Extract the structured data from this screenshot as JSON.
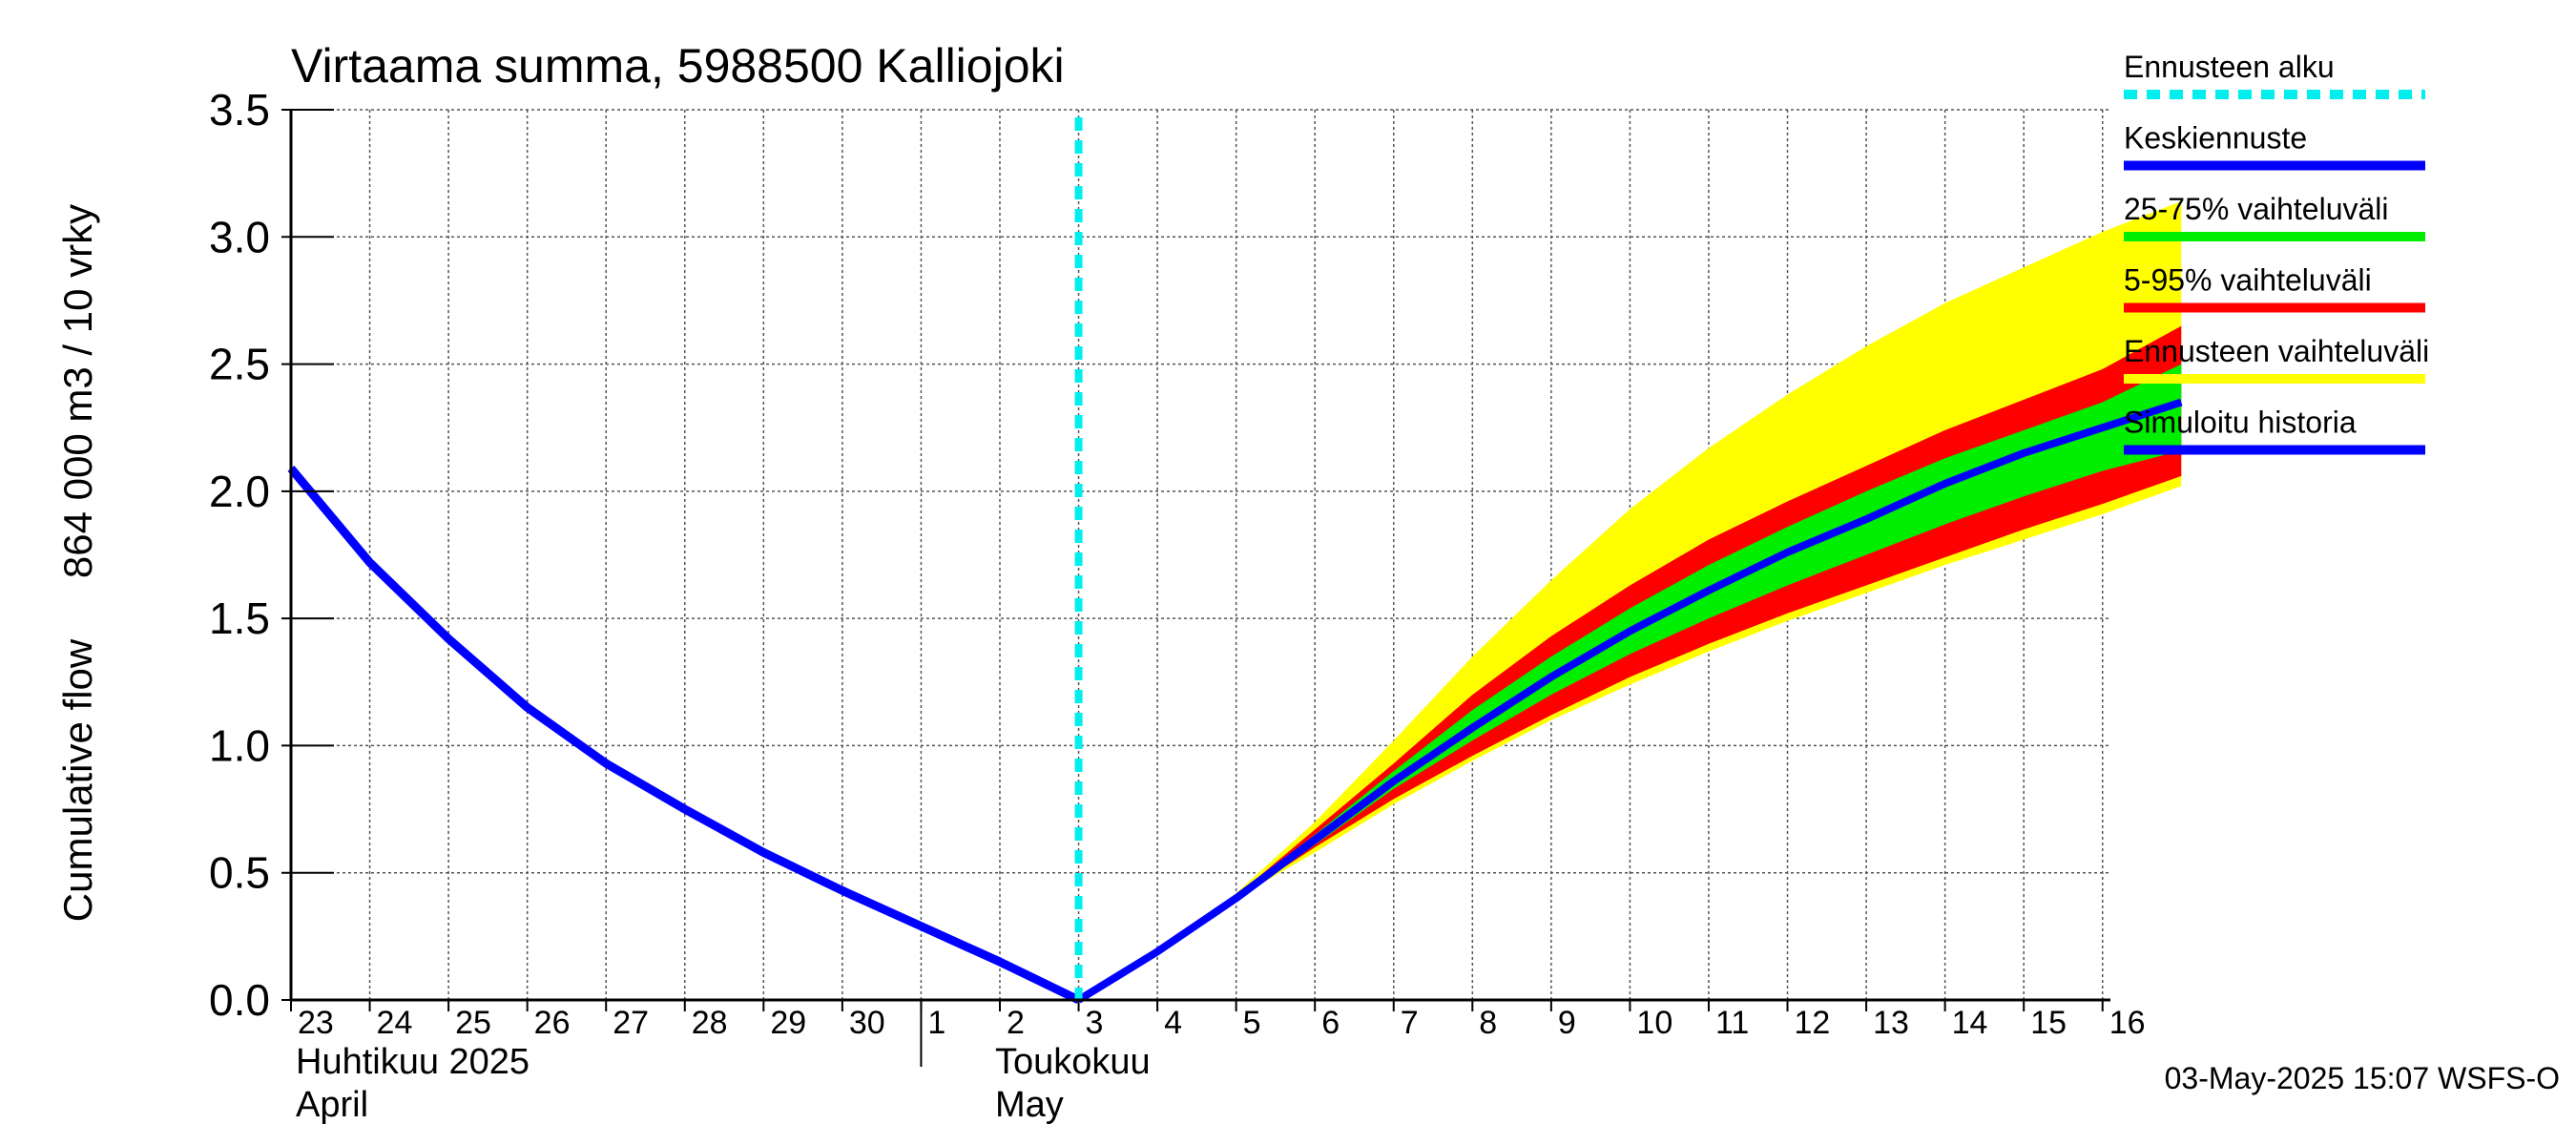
{
  "chart_data": {
    "type": "area",
    "title": "Virtaama summa, 5988500 Kalliojoki",
    "ylabel_line1": "Cumulative flow",
    "ylabel_line2": "864 000 m3 / 10 vrky",
    "ylim": [
      0,
      3.5
    ],
    "yticks": [
      "0.0",
      "0.5",
      "1.0",
      "1.5",
      "2.0",
      "2.5",
      "3.0",
      "3.5"
    ],
    "grid": true,
    "legend_position": "right",
    "x_days": [
      {
        "date": "2025-04-23",
        "label": "23"
      },
      {
        "date": "2025-04-24",
        "label": "24"
      },
      {
        "date": "2025-04-25",
        "label": "25"
      },
      {
        "date": "2025-04-26",
        "label": "26"
      },
      {
        "date": "2025-04-27",
        "label": "27"
      },
      {
        "date": "2025-04-28",
        "label": "28"
      },
      {
        "date": "2025-04-29",
        "label": "29"
      },
      {
        "date": "2025-04-30",
        "label": "30"
      },
      {
        "date": "2025-05-01",
        "label": "1"
      },
      {
        "date": "2025-05-02",
        "label": "2"
      },
      {
        "date": "2025-05-03",
        "label": "3"
      },
      {
        "date": "2025-05-04",
        "label": "4"
      },
      {
        "date": "2025-05-05",
        "label": "5"
      },
      {
        "date": "2025-05-06",
        "label": "6"
      },
      {
        "date": "2025-05-07",
        "label": "7"
      },
      {
        "date": "2025-05-08",
        "label": "8"
      },
      {
        "date": "2025-05-09",
        "label": "9"
      },
      {
        "date": "2025-05-10",
        "label": "10"
      },
      {
        "date": "2025-05-11",
        "label": "11"
      },
      {
        "date": "2025-05-12",
        "label": "12"
      },
      {
        "date": "2025-05-13",
        "label": "13"
      },
      {
        "date": "2025-05-14",
        "label": "14"
      },
      {
        "date": "2025-05-15",
        "label": "15"
      },
      {
        "date": "2025-05-16",
        "label": "16"
      }
    ],
    "months": [
      {
        "name_fi": "Huhtikuu  2025",
        "name_en": "April"
      },
      {
        "name_fi": "Toukokuu",
        "name_en": "May"
      }
    ],
    "forecast_start": "2025-05-03",
    "history": {
      "name": "Simuloitu historia",
      "x": [
        "2025-04-23",
        "2025-04-24",
        "2025-04-25",
        "2025-04-26",
        "2025-04-27",
        "2025-04-28",
        "2025-04-29",
        "2025-04-30",
        "2025-05-01",
        "2025-05-02",
        "2025-05-03"
      ],
      "y": [
        2.09,
        1.72,
        1.42,
        1.15,
        0.93,
        0.75,
        0.58,
        0.43,
        0.29,
        0.15,
        0.0
      ]
    },
    "forecast_x": [
      "2025-05-03",
      "2025-05-04",
      "2025-05-05",
      "2025-05-06",
      "2025-05-07",
      "2025-05-08",
      "2025-05-09",
      "2025-05-10",
      "2025-05-11",
      "2025-05-12",
      "2025-05-13",
      "2025-05-14",
      "2025-05-15",
      "2025-05-16",
      "2025-05-17"
    ],
    "bands": [
      {
        "name": "Ennusteen vaihteluväli",
        "color": "#ffff00",
        "lower": [
          0.0,
          0.19,
          0.4,
          0.58,
          0.77,
          0.94,
          1.1,
          1.24,
          1.37,
          1.49,
          1.6,
          1.71,
          1.81,
          1.91,
          2.02
        ],
        "upper": [
          0.0,
          0.19,
          0.42,
          0.7,
          1.02,
          1.35,
          1.65,
          1.93,
          2.17,
          2.38,
          2.57,
          2.74,
          2.88,
          3.02,
          3.14
        ]
      },
      {
        "name": "5-95% vaihteluväli",
        "color": "#ff0000",
        "lower": [
          0.0,
          0.19,
          0.4,
          0.6,
          0.79,
          0.96,
          1.12,
          1.27,
          1.4,
          1.52,
          1.63,
          1.74,
          1.85,
          1.95,
          2.06
        ],
        "upper": [
          0.0,
          0.19,
          0.41,
          0.67,
          0.93,
          1.2,
          1.43,
          1.63,
          1.81,
          1.96,
          2.1,
          2.24,
          2.36,
          2.48,
          2.65
        ]
      },
      {
        "name": "25-75% vaihteluväli",
        "color": "#00ee00",
        "lower": [
          0.0,
          0.19,
          0.4,
          0.61,
          0.83,
          1.02,
          1.2,
          1.36,
          1.5,
          1.63,
          1.75,
          1.87,
          1.98,
          2.08,
          2.16
        ],
        "upper": [
          0.0,
          0.19,
          0.41,
          0.65,
          0.9,
          1.14,
          1.35,
          1.54,
          1.71,
          1.86,
          2.0,
          2.13,
          2.24,
          2.35,
          2.5
        ]
      }
    ],
    "median": {
      "name": "Keskiennuste",
      "color": "#0000ff",
      "y": [
        0.0,
        0.19,
        0.4,
        0.63,
        0.86,
        1.07,
        1.27,
        1.45,
        1.61,
        1.76,
        1.89,
        2.03,
        2.15,
        2.25,
        2.35
      ]
    },
    "legend": [
      {
        "label": "Ennusteen alku",
        "color": "#00eeee",
        "style": "dashed"
      },
      {
        "label": "Keskiennuste",
        "color": "#0000ff",
        "style": "solid"
      },
      {
        "label": "25-75% vaihteluväli",
        "color": "#00ee00",
        "style": "solid"
      },
      {
        "label": "5-95% vaihteluväli",
        "color": "#ff0000",
        "style": "solid"
      },
      {
        "label": "Ennusteen vaihteluväli",
        "color": "#ffff00",
        "style": "solid"
      },
      {
        "label": "Simuloitu historia",
        "color": "#0000ff",
        "style": "solid"
      }
    ],
    "history_color": "#0000ff",
    "forecast_line_color": "#00eeee"
  },
  "footer": {
    "timestamp": "03-May-2025 15:07 WSFS-O"
  }
}
